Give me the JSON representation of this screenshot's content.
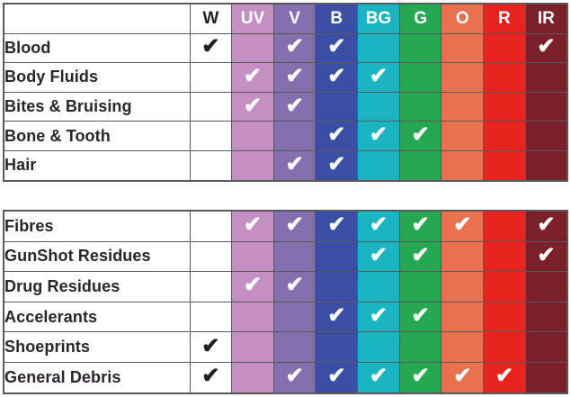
{
  "check_glyph": "✔",
  "grid_color": "#58595b",
  "label_text_color": "#29252a",
  "columns": [
    {
      "key": "W",
      "label": "W",
      "bg": "#ffffff",
      "text_color": "#231f20",
      "check_color": "#231f20"
    },
    {
      "key": "UV",
      "label": "UV",
      "bg": "#c48fc3",
      "text_color": "#ffffff",
      "check_color": "#ffffff"
    },
    {
      "key": "V",
      "label": "V",
      "bg": "#8470ae",
      "text_color": "#ffffff",
      "check_color": "#ffffff"
    },
    {
      "key": "B",
      "label": "B",
      "bg": "#3a4fa4",
      "text_color": "#ffffff",
      "check_color": "#ffffff"
    },
    {
      "key": "BG",
      "label": "BG",
      "bg": "#1bb5c2",
      "text_color": "#ffffff",
      "check_color": "#ffffff"
    },
    {
      "key": "G",
      "label": "G",
      "bg": "#25a851",
      "text_color": "#ffffff",
      "check_color": "#ffffff"
    },
    {
      "key": "O",
      "label": "O",
      "bg": "#e97150",
      "text_color": "#ffffff",
      "check_color": "#ffffff"
    },
    {
      "key": "R",
      "label": "R",
      "bg": "#e6231f",
      "text_color": "#ffffff",
      "check_color": "#ffffff"
    },
    {
      "key": "IR",
      "label": "IR",
      "bg": "#7a202a",
      "text_color": "#ffffff",
      "check_color": "#ffffff"
    }
  ],
  "tables": [
    {
      "name": "top-table",
      "has_header": true,
      "rows": [
        {
          "label": "Blood",
          "checks": [
            "W",
            "V",
            "B",
            "IR"
          ]
        },
        {
          "label": "Body Fluids",
          "checks": [
            "UV",
            "V",
            "B",
            "BG"
          ]
        },
        {
          "label": "Bites & Bruising",
          "checks": [
            "UV",
            "V"
          ]
        },
        {
          "label": "Bone & Tooth",
          "checks": [
            "B",
            "BG",
            "G"
          ]
        },
        {
          "label": "Hair",
          "checks": [
            "V",
            "B"
          ]
        }
      ]
    },
    {
      "name": "bottom-table",
      "has_header": false,
      "rows": [
        {
          "label": "Fibres",
          "checks": [
            "UV",
            "V",
            "B",
            "BG",
            "G",
            "O",
            "IR"
          ]
        },
        {
          "label": "GunShot Residues",
          "checks": [
            "BG",
            "G",
            "IR"
          ]
        },
        {
          "label": "Drug Residues",
          "checks": [
            "UV",
            "V"
          ]
        },
        {
          "label": "Accelerants",
          "checks": [
            "B",
            "BG",
            "G"
          ]
        },
        {
          "label": "Shoeprints",
          "checks": [
            "W"
          ]
        },
        {
          "label": "General Debris",
          "checks": [
            "W",
            "V",
            "B",
            "BG",
            "G",
            "O",
            "R"
          ]
        }
      ]
    }
  ],
  "chart_data": {
    "type": "table",
    "columns": [
      "W",
      "UV",
      "V",
      "B",
      "BG",
      "G",
      "O",
      "R",
      "IR"
    ],
    "column_colors": [
      "#ffffff",
      "#c48fc3",
      "#8470ae",
      "#3a4fa4",
      "#1bb5c2",
      "#25a851",
      "#e97150",
      "#e6231f",
      "#7a202a"
    ],
    "legend_position": "none",
    "sections": [
      {
        "rows": [
          {
            "label": "Blood",
            "checked": [
              "W",
              "V",
              "B",
              "IR"
            ]
          },
          {
            "label": "Body Fluids",
            "checked": [
              "UV",
              "V",
              "B",
              "BG"
            ]
          },
          {
            "label": "Bites & Bruising",
            "checked": [
              "UV",
              "V"
            ]
          },
          {
            "label": "Bone & Tooth",
            "checked": [
              "B",
              "BG",
              "G"
            ]
          },
          {
            "label": "Hair",
            "checked": [
              "V",
              "B"
            ]
          }
        ]
      },
      {
        "rows": [
          {
            "label": "Fibres",
            "checked": [
              "UV",
              "V",
              "B",
              "BG",
              "G",
              "O",
              "IR"
            ]
          },
          {
            "label": "GunShot Residues",
            "checked": [
              "BG",
              "G",
              "IR"
            ]
          },
          {
            "label": "Drug Residues",
            "checked": [
              "UV",
              "V"
            ]
          },
          {
            "label": "Accelerants",
            "checked": [
              "B",
              "BG",
              "G"
            ]
          },
          {
            "label": "Shoeprints",
            "checked": [
              "W"
            ]
          },
          {
            "label": "General Debris",
            "checked": [
              "W",
              "V",
              "B",
              "BG",
              "G",
              "O",
              "R"
            ]
          }
        ]
      }
    ]
  }
}
